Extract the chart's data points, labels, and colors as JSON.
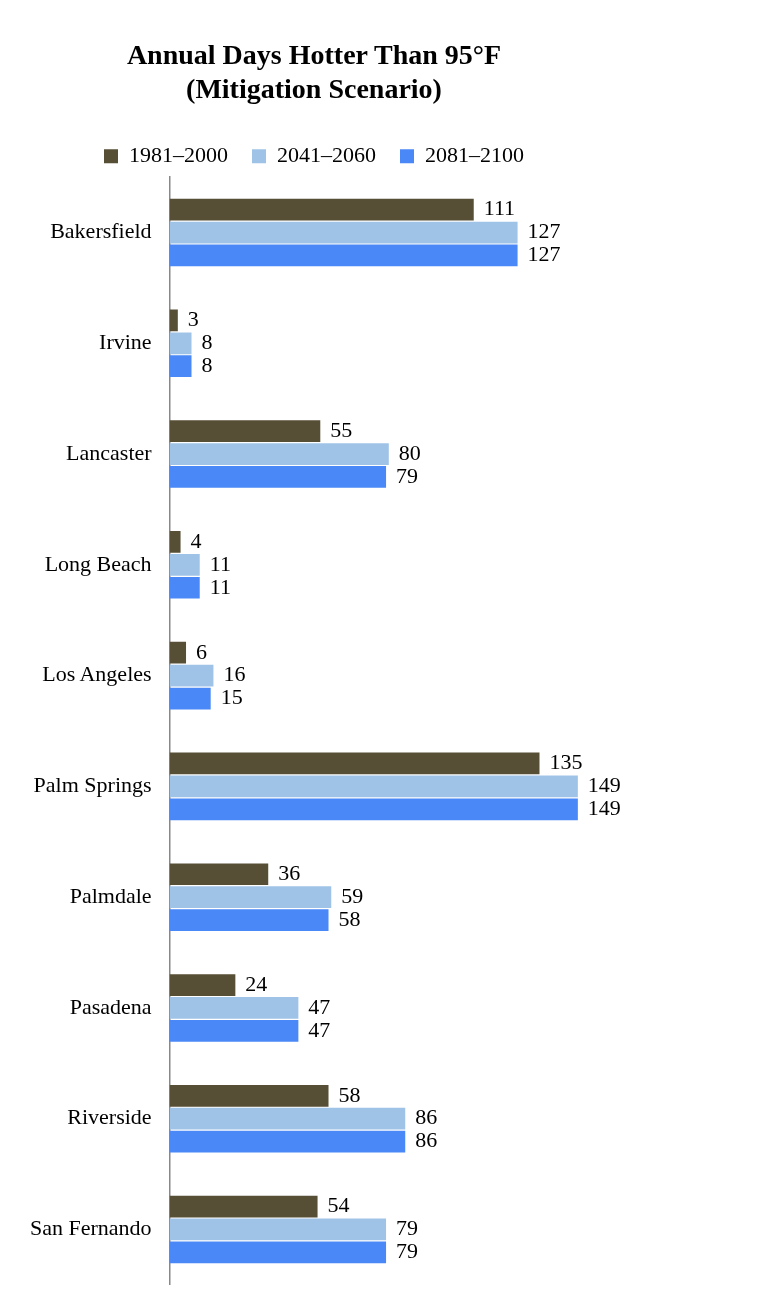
{
  "chart_data": {
    "type": "bar",
    "orientation": "horizontal",
    "title": "Annual Days Hotter Than 95°F\n(Mitigation Scenario)",
    "categories": [
      "Bakersfield",
      "Irvine",
      "Lancaster",
      "Long Beach",
      "Los Angeles",
      "Palm Springs",
      "Palmdale",
      "Pasadena",
      "Riverside",
      "San Fernando"
    ],
    "series": [
      {
        "name": "1981–2000",
        "color": "#564e35",
        "values": [
          111,
          3,
          55,
          4,
          6,
          135,
          36,
          24,
          58,
          54
        ]
      },
      {
        "name": "2041–2060",
        "color": "#9fc3e7",
        "values": [
          127,
          8,
          80,
          11,
          16,
          149,
          59,
          47,
          86,
          79
        ]
      },
      {
        "name": "2081–2100",
        "color": "#4a88f7",
        "values": [
          127,
          8,
          79,
          11,
          15,
          149,
          58,
          47,
          86,
          79
        ]
      }
    ],
    "data_labels": true,
    "legend": "top",
    "grid": false
  }
}
